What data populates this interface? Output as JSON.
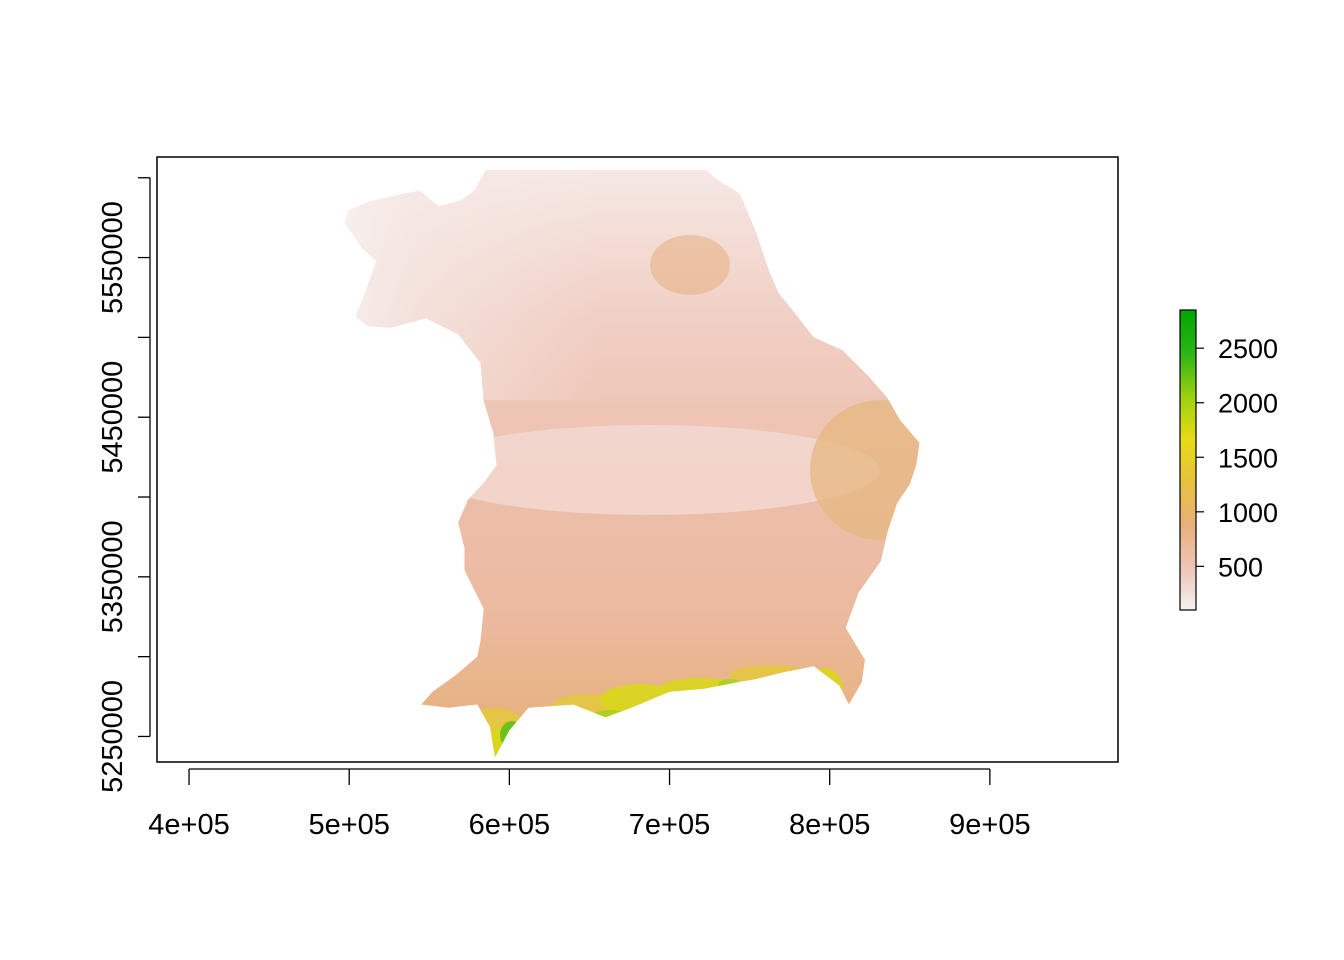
{
  "chart_data": {
    "type": "heatmap",
    "title": "",
    "xlabel": "",
    "ylabel": "",
    "x_ticks": [
      {
        "value": 400000,
        "label": "4e+05"
      },
      {
        "value": 500000,
        "label": "5e+05"
      },
      {
        "value": 600000,
        "label": "6e+05"
      },
      {
        "value": 700000,
        "label": "7e+05"
      },
      {
        "value": 800000,
        "label": "8e+05"
      },
      {
        "value": 900000,
        "label": "9e+05"
      }
    ],
    "y_ticks": [
      {
        "value": 5250000,
        "label": "5250000"
      },
      {
        "value": 5300000,
        "label": ""
      },
      {
        "value": 5350000,
        "label": "5350000"
      },
      {
        "value": 5400000,
        "label": ""
      },
      {
        "value": 5450000,
        "label": "5450000"
      },
      {
        "value": 5500000,
        "label": ""
      },
      {
        "value": 5550000,
        "label": "5550000"
      },
      {
        "value": 5600000,
        "label": ""
      }
    ],
    "xlim": [
      380000,
      980000
    ],
    "ylim": [
      5234000,
      5613000
    ],
    "legend": {
      "placement": "right",
      "range": [
        100,
        2850
      ],
      "ticks": [
        {
          "value": 500,
          "label": "500"
        },
        {
          "value": 1000,
          "label": "1000"
        },
        {
          "value": 1500,
          "label": "1500"
        },
        {
          "value": 2000,
          "label": "2000"
        },
        {
          "value": 2500,
          "label": "2500"
        }
      ],
      "colors": [
        "#f2f2f2",
        "#eec4b4",
        "#e8b17b",
        "#e7c23a",
        "#e6dc16",
        "#9ad10e",
        "#2bb517",
        "#00a600"
      ]
    },
    "region_outline": [
      [
        591000,
        5237000
      ],
      [
        600000,
        5254000
      ],
      [
        612000,
        5268000
      ],
      [
        640000,
        5270000
      ],
      [
        660000,
        5262000
      ],
      [
        676000,
        5268000
      ],
      [
        700000,
        5278000
      ],
      [
        722000,
        5280000
      ],
      [
        742000,
        5284000
      ],
      [
        754000,
        5286000
      ],
      [
        770000,
        5290000
      ],
      [
        790000,
        5294000
      ],
      [
        806000,
        5282000
      ],
      [
        812000,
        5270000
      ],
      [
        820000,
        5284000
      ],
      [
        822000,
        5298000
      ],
      [
        810000,
        5318000
      ],
      [
        818000,
        5340000
      ],
      [
        832000,
        5360000
      ],
      [
        836000,
        5378000
      ],
      [
        842000,
        5396000
      ],
      [
        850000,
        5408000
      ],
      [
        854000,
        5420000
      ],
      [
        856000,
        5434000
      ],
      [
        844000,
        5448000
      ],
      [
        836000,
        5462000
      ],
      [
        824000,
        5476000
      ],
      [
        808000,
        5492000
      ],
      [
        790000,
        5500000
      ],
      [
        776000,
        5518000
      ],
      [
        768000,
        5528000
      ],
      [
        762000,
        5542000
      ],
      [
        754000,
        5566000
      ],
      [
        744000,
        5590000
      ],
      [
        728000,
        5600000
      ],
      [
        716000,
        5612000
      ],
      [
        706000,
        5622000
      ],
      [
        688000,
        5626000
      ],
      [
        660000,
        5624000
      ],
      [
        640000,
        5634000
      ],
      [
        624000,
        5638000
      ],
      [
        610000,
        5628000
      ],
      [
        592000,
        5615000
      ],
      [
        586000,
        5606000
      ],
      [
        578000,
        5592000
      ],
      [
        570000,
        5586000
      ],
      [
        556000,
        5582000
      ],
      [
        544000,
        5592000
      ],
      [
        534000,
        5590000
      ],
      [
        512000,
        5585000
      ],
      [
        500000,
        5580000
      ],
      [
        497000,
        5572000
      ],
      [
        508000,
        5556000
      ],
      [
        517000,
        5548000
      ],
      [
        510000,
        5528000
      ],
      [
        504000,
        5513000
      ],
      [
        512000,
        5507000
      ],
      [
        526000,
        5506000
      ],
      [
        548000,
        5512000
      ],
      [
        568000,
        5502000
      ],
      [
        582000,
        5484000
      ],
      [
        584000,
        5460000
      ],
      [
        590000,
        5440000
      ],
      [
        592000,
        5420000
      ],
      [
        585000,
        5410000
      ],
      [
        574000,
        5398000
      ],
      [
        568000,
        5384000
      ],
      [
        572000,
        5368000
      ],
      [
        572000,
        5354000
      ],
      [
        584000,
        5330000
      ],
      [
        582000,
        5310000
      ],
      [
        580000,
        5300000
      ],
      [
        566000,
        5288000
      ],
      [
        552000,
        5278000
      ],
      [
        545000,
        5270000
      ],
      [
        562000,
        5268000
      ],
      [
        580000,
        5270000
      ],
      [
        588000,
        5256000
      ]
    ]
  }
}
